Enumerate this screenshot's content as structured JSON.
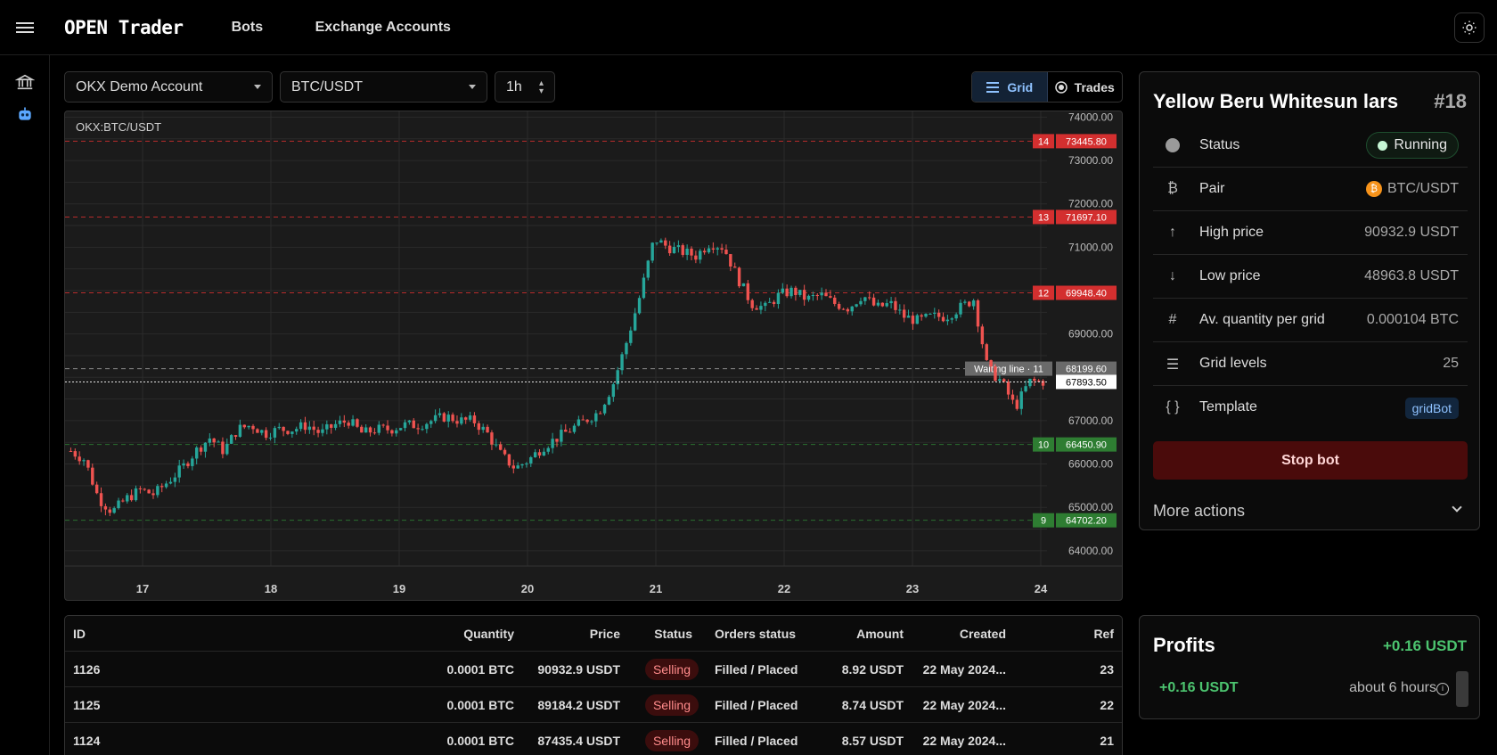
{
  "header": {
    "brand": "OPEN Trader",
    "nav": [
      "Bots",
      "Exchange Accounts"
    ],
    "icons": {
      "menu": "hamburger-icon",
      "theme": "sun-icon"
    }
  },
  "rail": {
    "icons": [
      "bank-icon",
      "robot-icon"
    ]
  },
  "selectors": {
    "account": "OKX Demo Account",
    "pair": "BTC/USDT",
    "timeframe": "1h"
  },
  "view_toggle": {
    "grid": "Grid",
    "trades": "Trades",
    "active": "grid"
  },
  "chart_data": {
    "type": "candlestick",
    "symbol_label": "OKX:BTC/USDT",
    "x_ticks": [
      "17",
      "18",
      "19",
      "20",
      "21",
      "22",
      "23",
      "24"
    ],
    "y_ticks": [
      "74000.00",
      "73000.00",
      "72000.00",
      "71000.00",
      "69000.00",
      "67000.00",
      "66000.00",
      "65000.00",
      "64000.00"
    ],
    "ylim": [
      63750,
      74050
    ],
    "grid": true,
    "grid_levels": [
      {
        "index": "14",
        "price": "73445.80",
        "color": "#d32f2f"
      },
      {
        "index": "13",
        "price": "71697.10",
        "color": "#d32f2f"
      },
      {
        "index": "12",
        "price": "69948.40",
        "color": "#d32f2f"
      },
      {
        "index": "10",
        "price": "66450.90",
        "color": "#2e7d32"
      },
      {
        "index": "9",
        "price": "64702.20",
        "color": "#2e7d32"
      }
    ],
    "waiting_line": {
      "label": "Waiting line · 11",
      "price": "68199.60"
    },
    "last_price": "67893.50",
    "close_series_approx": [
      66300,
      66100,
      65200,
      64900,
      65200,
      65400,
      65300,
      65600,
      65900,
      66300,
      66600,
      66300,
      66800,
      66900,
      66700,
      66800,
      66800,
      66900,
      66700,
      66900,
      67000,
      66700,
      66800,
      66800,
      66900,
      66900,
      67000,
      67100,
      67000,
      67000,
      66700,
      66200,
      65900,
      66100,
      66400,
      66600,
      66800,
      67000,
      67200,
      67800,
      68800,
      69900,
      71200,
      71000,
      70900,
      70800,
      71100,
      71000,
      70300,
      69700,
      69600,
      69900,
      70000,
      69800,
      69900,
      69700,
      69600,
      69900,
      69600,
      69700,
      69400,
      69300,
      69400,
      69400,
      69600,
      69800,
      68200,
      67900,
      67300,
      67900,
      67900
    ]
  },
  "table": {
    "columns": [
      "ID",
      "Quantity",
      "Price",
      "Status",
      "Orders status",
      "Amount",
      "Created",
      "Ref"
    ],
    "rows": [
      {
        "id": "1126",
        "qty": "0.0001 BTC",
        "price": "90932.9 USDT",
        "status": "Selling",
        "orders": "Filled / Placed",
        "amount": "8.92 USDT",
        "created": "22 May 2024...",
        "ref": "23"
      },
      {
        "id": "1125",
        "qty": "0.0001 BTC",
        "price": "89184.2 USDT",
        "status": "Selling",
        "orders": "Filled / Placed",
        "amount": "8.74 USDT",
        "created": "22 May 2024...",
        "ref": "22"
      },
      {
        "id": "1124",
        "qty": "0.0001 BTC",
        "price": "87435.4 USDT",
        "status": "Selling",
        "orders": "Filled / Placed",
        "amount": "8.57 USDT",
        "created": "22 May 2024...",
        "ref": "21"
      }
    ]
  },
  "bot": {
    "name": "Yellow Beru Whitesun lars",
    "number": "#18",
    "status_label": "Status",
    "status_value": "Running",
    "pair_label": "Pair",
    "pair_value": "BTC/USDT",
    "high_label": "High price",
    "high_value": "90932.9 USDT",
    "low_label": "Low price",
    "low_value": "48963.8 USDT",
    "qty_label": "Av. quantity per grid",
    "qty_value": "0.000104 BTC",
    "levels_label": "Grid levels",
    "levels_value": "25",
    "template_label": "Template",
    "template_value": "gridBot",
    "stop_button": "Stop bot",
    "more_actions": "More actions"
  },
  "profits": {
    "title": "Profits",
    "total": "+0.16 USDT",
    "item_amount": "+0.16 USDT",
    "item_time": "about 6 hours"
  }
}
